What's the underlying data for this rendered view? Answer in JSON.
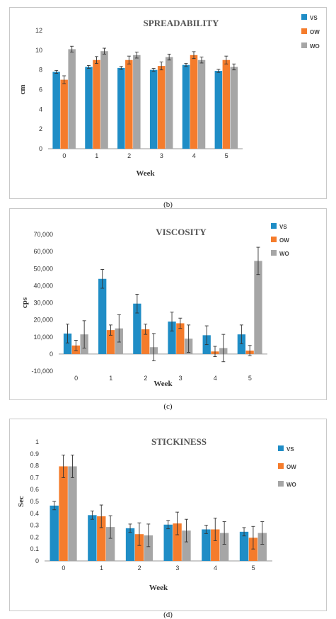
{
  "figure": {
    "panels": [
      {
        "caption": "(b)"
      },
      {
        "caption": "(c)"
      },
      {
        "caption": "(d)"
      }
    ]
  },
  "chart_data": [
    {
      "type": "bar",
      "title": "SPREADABILITY",
      "xlabel": "Week",
      "ylabel": "cm",
      "categories": [
        "0",
        "1",
        "2",
        "3",
        "4",
        "5"
      ],
      "ylim": [
        0,
        12
      ],
      "yticks": [
        0,
        2,
        4,
        6,
        8,
        10,
        12
      ],
      "ytick_labels": [
        "0",
        "2",
        "4",
        "6",
        "8",
        "10",
        "12"
      ],
      "legend_position": "top-right",
      "series": [
        {
          "name": "VS",
          "color": "#1f8dc6",
          "values": [
            7.8,
            8.3,
            8.2,
            8.0,
            8.5,
            7.9
          ],
          "errors": [
            0.15,
            0.15,
            0.15,
            0.15,
            0.15,
            0.15
          ]
        },
        {
          "name": "OW",
          "color": "#f57c2c",
          "values": [
            7.0,
            9.0,
            9.0,
            8.4,
            9.5,
            9.0
          ],
          "errors": [
            0.4,
            0.35,
            0.4,
            0.4,
            0.35,
            0.4
          ]
        },
        {
          "name": "WO",
          "color": "#a6a6a6",
          "values": [
            10.1,
            9.9,
            9.5,
            9.3,
            9.0,
            8.3
          ],
          "errors": [
            0.3,
            0.3,
            0.3,
            0.3,
            0.3,
            0.3
          ]
        }
      ]
    },
    {
      "type": "bar",
      "title": "VISCOSITY",
      "xlabel": "Week",
      "ylabel": "cps",
      "categories": [
        "0",
        "1",
        "2",
        "3",
        "4",
        "5"
      ],
      "ylim": [
        -10000,
        70000
      ],
      "yticks": [
        -10000,
        0,
        10000,
        20000,
        30000,
        40000,
        50000,
        60000,
        70000
      ],
      "ytick_labels": [
        "-10,000",
        "0",
        "10,000",
        "20,000",
        "30,000",
        "40,000",
        "50,000",
        "60,000",
        "70,000"
      ],
      "legend_position": "top-right",
      "series": [
        {
          "name": "VS",
          "color": "#1f8dc6",
          "values": [
            12000,
            44000,
            29500,
            19000,
            11000,
            11500
          ],
          "errors": [
            5500,
            5500,
            5500,
            5500,
            5500,
            5500
          ]
        },
        {
          "name": "OW",
          "color": "#f57c2c",
          "values": [
            5000,
            14000,
            14500,
            18000,
            1500,
            2000
          ],
          "errors": [
            3000,
            3000,
            3000,
            3000,
            3000,
            3000
          ]
        },
        {
          "name": "WO",
          "color": "#a6a6a6",
          "values": [
            11500,
            15000,
            4000,
            9000,
            3500,
            54500
          ],
          "errors": [
            8000,
            8000,
            8000,
            8000,
            8000,
            8000
          ]
        }
      ]
    },
    {
      "type": "bar",
      "title": "STICKINESS",
      "xlabel": "Week",
      "ylabel": "Sec",
      "categories": [
        "0",
        "1",
        "2",
        "3",
        "4",
        "5"
      ],
      "ylim": [
        0,
        1
      ],
      "yticks": [
        0,
        0.1,
        0.2,
        0.3,
        0.4,
        0.5,
        0.6,
        0.7,
        0.8,
        0.9,
        1
      ],
      "ytick_labels": [
        "0",
        "0.1",
        "0.2",
        "0.3",
        "0.4",
        "0.5",
        "0.6",
        "0.7",
        "0.8",
        "0.9",
        "1"
      ],
      "legend_position": "top-right",
      "series": [
        {
          "name": "VS",
          "color": "#1f8dc6",
          "values": [
            0.465,
            0.385,
            0.275,
            0.305,
            0.265,
            0.245
          ],
          "errors": [
            0.035,
            0.035,
            0.035,
            0.035,
            0.035,
            0.035
          ]
        },
        {
          "name": "OW",
          "color": "#f57c2c",
          "values": [
            0.795,
            0.375,
            0.225,
            0.315,
            0.265,
            0.195
          ],
          "errors": [
            0.095,
            0.095,
            0.095,
            0.095,
            0.095,
            0.095
          ]
        },
        {
          "name": "WO",
          "color": "#a6a6a6",
          "values": [
            0.795,
            0.285,
            0.215,
            0.255,
            0.235,
            0.235
          ],
          "errors": [
            0.095,
            0.095,
            0.095,
            0.095,
            0.095,
            0.095
          ]
        }
      ]
    }
  ]
}
